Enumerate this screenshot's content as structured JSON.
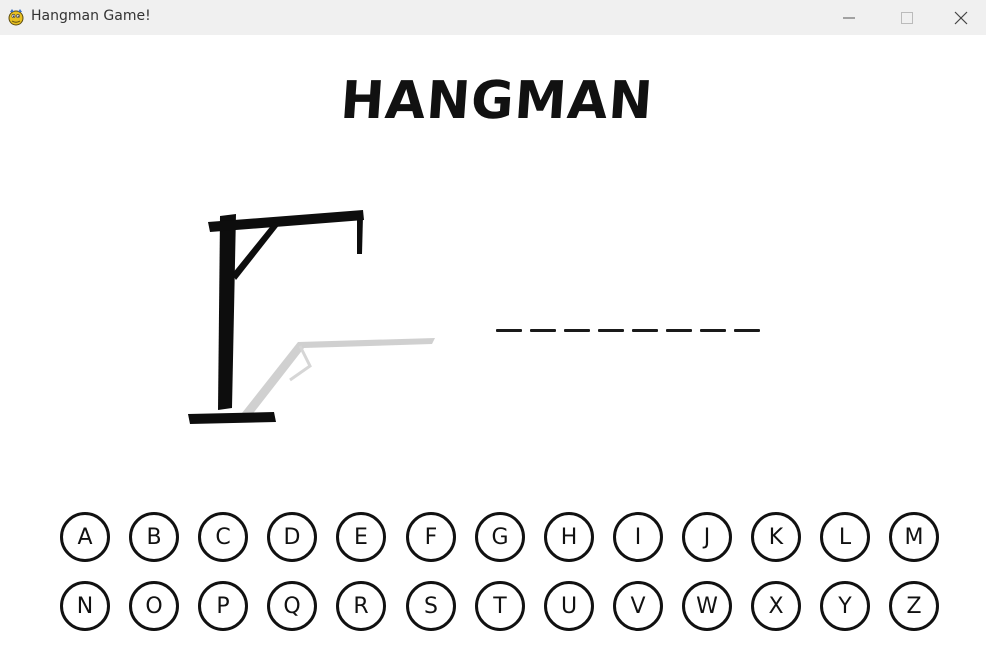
{
  "window": {
    "title": "Hangman Game!"
  },
  "game": {
    "title": "HANGMAN",
    "word_length": 8,
    "wrong_guesses": 0
  },
  "keyboard": {
    "rows": [
      [
        "A",
        "B",
        "C",
        "D",
        "E",
        "F",
        "G",
        "H",
        "I",
        "J",
        "K",
        "L",
        "M"
      ],
      [
        "N",
        "O",
        "P",
        "Q",
        "R",
        "S",
        "T",
        "U",
        "V",
        "W",
        "X",
        "Y",
        "Z"
      ]
    ]
  },
  "icons": {
    "app": "pygame-snake-icon",
    "minimize": "minimize-icon",
    "maximize": "maximize-icon",
    "close": "close-icon"
  }
}
